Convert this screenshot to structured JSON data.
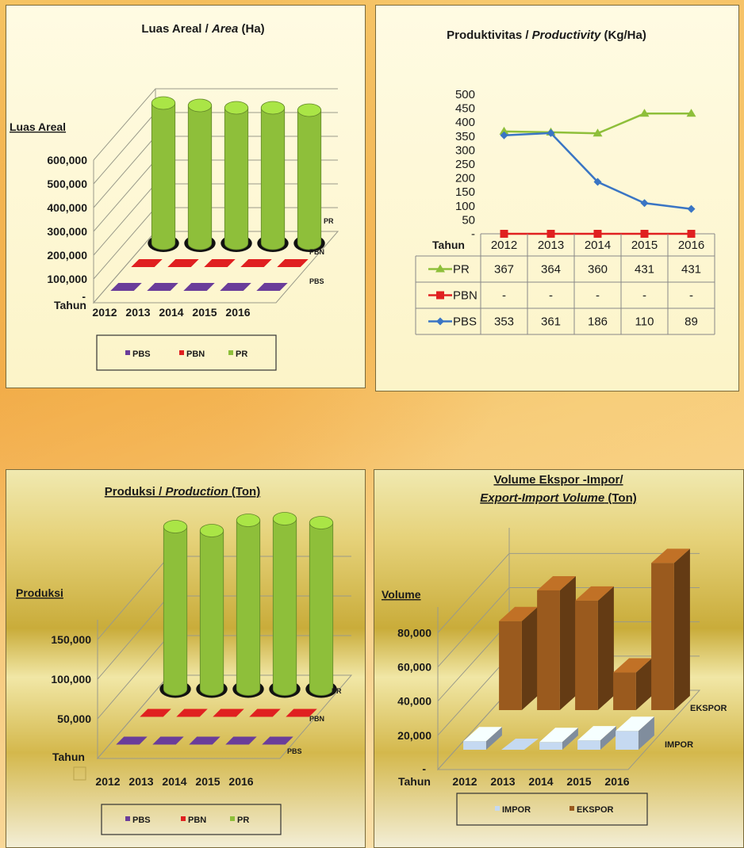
{
  "chart_data": [
    {
      "type": "bar",
      "title": "Luas Areal / ",
      "title_italic": "Area",
      "title_end": " (Ha)",
      "ylabel": "Luas Areal",
      "xlabel": "Tahun",
      "y_zero_label": "-",
      "y_ticks": [
        "100,000",
        "200,000",
        "300,000",
        "400,000",
        "500,000",
        "600,000"
      ],
      "categories": [
        "2012",
        "2013",
        "2014",
        "2015",
        "2016"
      ],
      "series": [
        {
          "name": "PBS",
          "values": [
            5000,
            5000,
            5000,
            5000,
            5000
          ],
          "color": "#6a3d9a"
        },
        {
          "name": "PBN",
          "values": [
            5000,
            5000,
            5000,
            5000,
            5000
          ],
          "color": "#e02020"
        },
        {
          "name": "PR",
          "values": [
            590000,
            580000,
            570000,
            570000,
            560000
          ],
          "color": "#8ebf3a"
        }
      ],
      "depth_labels": [
        "PR",
        "PBN",
        "PBS"
      ],
      "legend": [
        "PBS",
        "PBN",
        "PR"
      ]
    },
    {
      "type": "line",
      "title": "Produktivitas / ",
      "title_italic": "Productivity",
      "title_end": " (Kg/Ha)",
      "xlabel": "Tahun",
      "y_ticks": [
        "-",
        "50",
        "100",
        "150",
        "200",
        "250",
        "300",
        "350",
        "400",
        "450",
        "500"
      ],
      "ylim": [
        0,
        500
      ],
      "categories": [
        "2012",
        "2013",
        "2014",
        "2015",
        "2016"
      ],
      "series": [
        {
          "name": "PR",
          "values": [
            367,
            364,
            360,
            431,
            431
          ],
          "labels": [
            "367",
            "364",
            "360",
            "431",
            "431"
          ],
          "color": "#8ebf3a",
          "marker": "triangle"
        },
        {
          "name": "PBN",
          "values": [
            0,
            0,
            0,
            0,
            0
          ],
          "labels": [
            "-",
            "-",
            "-",
            "-",
            "-"
          ],
          "color": "#e02020",
          "marker": "square"
        },
        {
          "name": "PBS",
          "values": [
            353,
            361,
            186,
            110,
            89
          ],
          "labels": [
            "353",
            "361",
            "186",
            "110",
            "89"
          ],
          "color": "#3a75c4",
          "marker": "diamond"
        }
      ]
    },
    {
      "type": "bar",
      "title": "Produksi / ",
      "title_italic": "Production",
      "title_end": " (Ton)",
      "ylabel": "Produksi",
      "xlabel": "Tahun",
      "y_ticks": [
        "50,000",
        "100,000",
        "150,000"
      ],
      "categories": [
        "2012",
        "2013",
        "2014",
        "2015",
        "2016"
      ],
      "series": [
        {
          "name": "PBS",
          "values": [
            1000,
            1000,
            1000,
            1000,
            1000
          ],
          "color": "#6a3d9a"
        },
        {
          "name": "PBN",
          "values": [
            1000,
            1000,
            1000,
            1000,
            1000
          ],
          "color": "#e02020"
        },
        {
          "name": "PR",
          "values": [
            205000,
            200000,
            213000,
            215000,
            210000
          ],
          "color": "#8ebf3a"
        }
      ],
      "depth_labels": [
        "PR",
        "PBN",
        "PBS"
      ],
      "legend": [
        "PBS",
        "PBN",
        "PR"
      ]
    },
    {
      "type": "bar",
      "title_line1": "Volume Ekspor -Impor/",
      "title_italic": "Export-Import Volume",
      "title_end": " (Ton)",
      "ylabel": "Volume",
      "xlabel": "Tahun",
      "y_zero_label": "-",
      "y_ticks": [
        "20,000",
        "40,000",
        "60,000",
        "80,000"
      ],
      "categories": [
        "2012",
        "2013",
        "2014",
        "2015",
        "2016"
      ],
      "series": [
        {
          "name": "IMPOR",
          "values": [
            5000,
            1500,
            4500,
            5500,
            11000
          ],
          "color": "#c5d9f1"
        },
        {
          "name": "EKSPOR",
          "values": [
            52000,
            70000,
            64000,
            22000,
            86000
          ],
          "color": "#9a5a1e"
        }
      ],
      "depth_labels": [
        "EKSPOR",
        "IMPOR"
      ],
      "legend": [
        "IMPOR",
        "EKSPOR"
      ]
    }
  ]
}
